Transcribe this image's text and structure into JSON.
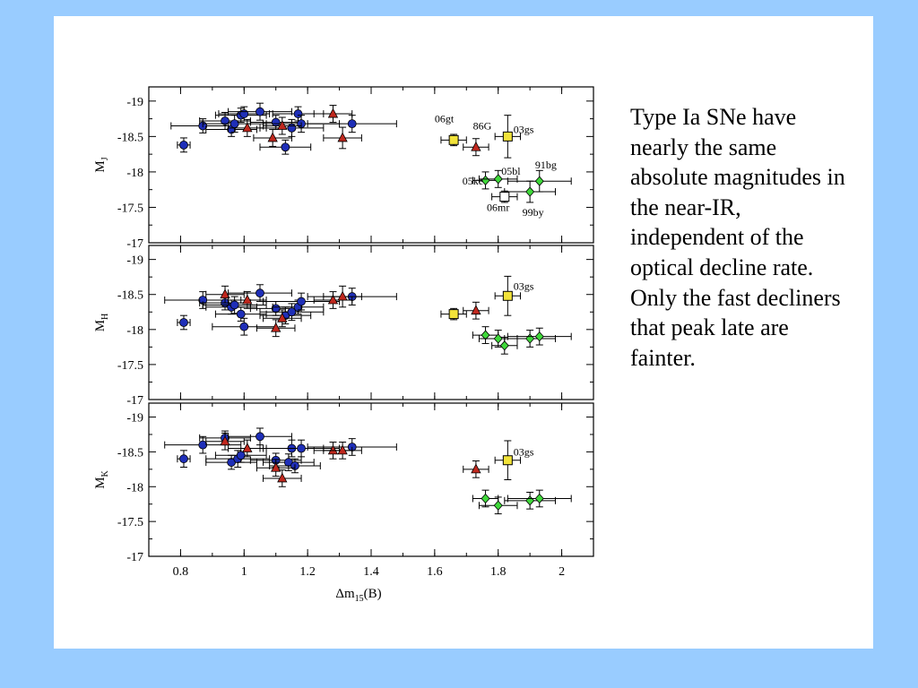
{
  "caption": "Type Ia SNe have nearly the same absolute magnitudes in the near-IR, independent of the optical decline rate. Only the fast decliners that peak late are fainter.",
  "chart_data": {
    "type": "scatter",
    "xlabel": "Δm15(B)",
    "xlim": [
      0.7,
      2.1
    ],
    "xticks": [
      "0.8",
      "1",
      "1.2",
      "1.4",
      "1.6",
      "1.8",
      "2"
    ],
    "ylim": [
      -17,
      -19.2
    ],
    "yticks": [
      "-19",
      "-18.5",
      "-18",
      "-17.5",
      "-17"
    ],
    "colors": {
      "blue": "#1f2fb8",
      "red": "#c0281e",
      "yellow": "#f2e33a",
      "green": "#3fd83a"
    },
    "panels": [
      {
        "ylabel": "MJ",
        "points": [
          {
            "x": 0.81,
            "y": -18.38,
            "xe": 0.02,
            "ye": 0.1,
            "m": "circle",
            "c": "blue"
          },
          {
            "x": 0.87,
            "y": -18.65,
            "xe": 0.1,
            "ye": 0.1,
            "m": "circle",
            "c": "blue"
          },
          {
            "x": 0.94,
            "y": -18.72,
            "xe": 0.08,
            "ye": 0.12,
            "m": "circle",
            "c": "blue"
          },
          {
            "x": 0.96,
            "y": -18.6,
            "xe": 0.08,
            "ye": 0.1,
            "m": "circle",
            "c": "blue"
          },
          {
            "x": 0.97,
            "y": -18.68,
            "xe": 0.1,
            "ye": 0.12,
            "m": "circle",
            "c": "blue"
          },
          {
            "x": 0.99,
            "y": -18.8,
            "xe": 0.08,
            "ye": 0.1,
            "m": "circle",
            "c": "blue"
          },
          {
            "x": 1.0,
            "y": -18.82,
            "xe": 0.08,
            "ye": 0.1,
            "m": "circle",
            "c": "blue"
          },
          {
            "x": 1.05,
            "y": -18.85,
            "xe": 0.1,
            "ye": 0.12,
            "m": "circle",
            "c": "blue"
          },
          {
            "x": 1.1,
            "y": -18.7,
            "xe": 0.08,
            "ye": 0.1,
            "m": "circle",
            "c": "blue"
          },
          {
            "x": 1.13,
            "y": -18.35,
            "xe": 0.08,
            "ye": 0.1,
            "m": "circle",
            "c": "blue"
          },
          {
            "x": 1.15,
            "y": -18.62,
            "xe": 0.1,
            "ye": 0.12,
            "m": "circle",
            "c": "blue"
          },
          {
            "x": 1.17,
            "y": -18.82,
            "xe": 0.08,
            "ye": 0.1,
            "m": "circle",
            "c": "blue"
          },
          {
            "x": 1.18,
            "y": -18.68,
            "xe": 0.12,
            "ye": 0.12,
            "m": "circle",
            "c": "blue"
          },
          {
            "x": 1.34,
            "y": -18.68,
            "xe": 0.14,
            "ye": 0.12,
            "m": "circle",
            "c": "blue"
          },
          {
            "x": 1.01,
            "y": -18.62,
            "xe": 0.06,
            "ye": 0.12,
            "m": "tri",
            "c": "red"
          },
          {
            "x": 1.09,
            "y": -18.48,
            "xe": 0.06,
            "ye": 0.12,
            "m": "tri",
            "c": "red"
          },
          {
            "x": 1.12,
            "y": -18.65,
            "xe": 0.06,
            "ye": 0.12,
            "m": "tri",
            "c": "red"
          },
          {
            "x": 1.28,
            "y": -18.82,
            "xe": 0.06,
            "ye": 0.12,
            "m": "tri",
            "c": "red"
          },
          {
            "x": 1.31,
            "y": -18.48,
            "xe": 0.06,
            "ye": 0.15,
            "m": "tri",
            "c": "red"
          },
          {
            "x": 1.73,
            "y": -18.35,
            "xe": 0.04,
            "ye": 0.12,
            "m": "tri",
            "c": "red"
          },
          {
            "x": 1.66,
            "y": -18.45,
            "xe": 0.04,
            "ye": 0.08,
            "m": "square",
            "c": "yellow"
          },
          {
            "x": 1.83,
            "y": -18.5,
            "xe": 0.04,
            "ye": 0.3,
            "m": "square",
            "c": "yellow"
          },
          {
            "x": 1.76,
            "y": -17.88,
            "xe": 0.04,
            "ye": 0.12,
            "m": "diamond",
            "c": "green"
          },
          {
            "x": 1.8,
            "y": -17.9,
            "xe": 0.06,
            "ye": 0.12,
            "m": "diamond",
            "c": "green"
          },
          {
            "x": 1.9,
            "y": -17.72,
            "xe": 0.08,
            "ye": 0.15,
            "m": "diamond",
            "c": "green"
          },
          {
            "x": 1.93,
            "y": -17.87,
            "xe": 0.1,
            "ye": 0.15,
            "m": "diamond",
            "c": "green"
          },
          {
            "x": 1.82,
            "y": -17.65,
            "xe": 0.04,
            "ye": 0.08,
            "m": "square",
            "c": "white"
          }
        ],
        "labels": [
          {
            "text": "06gt",
            "x": 1.63,
            "y": -18.7
          },
          {
            "text": "86G",
            "x": 1.75,
            "y": -18.6
          },
          {
            "text": "03gs",
            "x": 1.88,
            "y": -18.55
          },
          {
            "text": "05bl",
            "x": 1.84,
            "y": -17.96
          },
          {
            "text": "91bg",
            "x": 1.95,
            "y": -18.05
          },
          {
            "text": "05ke",
            "x": 1.72,
            "y": -17.82
          },
          {
            "text": "06mr",
            "x": 1.8,
            "y": -17.45
          },
          {
            "text": "99by",
            "x": 1.91,
            "y": -17.38
          }
        ]
      },
      {
        "ylabel": "MH",
        "points": [
          {
            "x": 0.81,
            "y": -18.1,
            "xe": 0.02,
            "ye": 0.1,
            "m": "circle",
            "c": "blue"
          },
          {
            "x": 0.87,
            "y": -18.42,
            "xe": 0.12,
            "ye": 0.12,
            "m": "circle",
            "c": "blue"
          },
          {
            "x": 0.94,
            "y": -18.38,
            "xe": 0.08,
            "ye": 0.1,
            "m": "circle",
            "c": "blue"
          },
          {
            "x": 0.96,
            "y": -18.32,
            "xe": 0.08,
            "ye": 0.1,
            "m": "circle",
            "c": "blue"
          },
          {
            "x": 0.97,
            "y": -18.35,
            "xe": 0.1,
            "ye": 0.12,
            "m": "circle",
            "c": "blue"
          },
          {
            "x": 0.99,
            "y": -18.22,
            "xe": 0.08,
            "ye": 0.1,
            "m": "circle",
            "c": "blue"
          },
          {
            "x": 1.0,
            "y": -18.04,
            "xe": 0.1,
            "ye": 0.12,
            "m": "circle",
            "c": "blue"
          },
          {
            "x": 1.05,
            "y": -18.52,
            "xe": 0.1,
            "ye": 0.12,
            "m": "circle",
            "c": "blue"
          },
          {
            "x": 1.1,
            "y": -18.3,
            "xe": 0.08,
            "ye": 0.1,
            "m": "circle",
            "c": "blue"
          },
          {
            "x": 1.13,
            "y": -18.2,
            "xe": 0.08,
            "ye": 0.12,
            "m": "circle",
            "c": "blue"
          },
          {
            "x": 1.15,
            "y": -18.25,
            "xe": 0.1,
            "ye": 0.12,
            "m": "circle",
            "c": "blue"
          },
          {
            "x": 1.17,
            "y": -18.32,
            "xe": 0.08,
            "ye": 0.1,
            "m": "circle",
            "c": "blue"
          },
          {
            "x": 1.18,
            "y": -18.4,
            "xe": 0.12,
            "ye": 0.12,
            "m": "circle",
            "c": "blue"
          },
          {
            "x": 1.34,
            "y": -18.47,
            "xe": 0.14,
            "ye": 0.12,
            "m": "circle",
            "c": "blue"
          },
          {
            "x": 0.94,
            "y": -18.5,
            "xe": 0.06,
            "ye": 0.12,
            "m": "tri",
            "c": "red"
          },
          {
            "x": 1.01,
            "y": -18.42,
            "xe": 0.06,
            "ye": 0.12,
            "m": "tri",
            "c": "red"
          },
          {
            "x": 1.1,
            "y": -18.02,
            "xe": 0.06,
            "ye": 0.12,
            "m": "tri",
            "c": "red"
          },
          {
            "x": 1.12,
            "y": -18.16,
            "xe": 0.06,
            "ye": 0.12,
            "m": "tri",
            "c": "red"
          },
          {
            "x": 1.28,
            "y": -18.42,
            "xe": 0.06,
            "ye": 0.12,
            "m": "tri",
            "c": "red"
          },
          {
            "x": 1.31,
            "y": -18.47,
            "xe": 0.06,
            "ye": 0.15,
            "m": "tri",
            "c": "red"
          },
          {
            "x": 1.73,
            "y": -18.27,
            "xe": 0.04,
            "ye": 0.12,
            "m": "tri",
            "c": "red"
          },
          {
            "x": 1.66,
            "y": -18.22,
            "xe": 0.04,
            "ye": 0.08,
            "m": "square",
            "c": "yellow"
          },
          {
            "x": 1.83,
            "y": -18.48,
            "xe": 0.04,
            "ye": 0.28,
            "m": "square",
            "c": "yellow"
          },
          {
            "x": 1.76,
            "y": -17.92,
            "xe": 0.04,
            "ye": 0.12,
            "m": "diamond",
            "c": "green"
          },
          {
            "x": 1.8,
            "y": -17.87,
            "xe": 0.06,
            "ye": 0.12,
            "m": "diamond",
            "c": "green"
          },
          {
            "x": 1.82,
            "y": -17.77,
            "xe": 0.04,
            "ye": 0.12,
            "m": "diamond",
            "c": "green"
          },
          {
            "x": 1.9,
            "y": -17.87,
            "xe": 0.08,
            "ye": 0.12,
            "m": "diamond",
            "c": "green"
          },
          {
            "x": 1.93,
            "y": -17.9,
            "xe": 0.1,
            "ye": 0.12,
            "m": "diamond",
            "c": "green"
          }
        ],
        "labels": [
          {
            "text": "03gs",
            "x": 1.88,
            "y": -18.57
          }
        ]
      },
      {
        "ylabel": "MK",
        "points": [
          {
            "x": 0.81,
            "y": -18.4,
            "xe": 0.02,
            "ye": 0.12,
            "m": "circle",
            "c": "blue"
          },
          {
            "x": 0.87,
            "y": -18.6,
            "xe": 0.12,
            "ye": 0.12,
            "m": "circle",
            "c": "blue"
          },
          {
            "x": 0.94,
            "y": -18.7,
            "xe": 0.08,
            "ye": 0.1,
            "m": "circle",
            "c": "blue"
          },
          {
            "x": 0.96,
            "y": -18.35,
            "xe": 0.08,
            "ye": 0.1,
            "m": "circle",
            "c": "blue"
          },
          {
            "x": 0.98,
            "y": -18.4,
            "xe": 0.1,
            "ye": 0.12,
            "m": "circle",
            "c": "blue"
          },
          {
            "x": 0.99,
            "y": -18.45,
            "xe": 0.08,
            "ye": 0.1,
            "m": "circle",
            "c": "blue"
          },
          {
            "x": 1.05,
            "y": -18.72,
            "xe": 0.1,
            "ye": 0.12,
            "m": "circle",
            "c": "blue"
          },
          {
            "x": 1.1,
            "y": -18.38,
            "xe": 0.08,
            "ye": 0.1,
            "m": "circle",
            "c": "blue"
          },
          {
            "x": 1.14,
            "y": -18.35,
            "xe": 0.08,
            "ye": 0.12,
            "m": "circle",
            "c": "blue"
          },
          {
            "x": 1.15,
            "y": -18.55,
            "xe": 0.1,
            "ye": 0.12,
            "m": "circle",
            "c": "blue"
          },
          {
            "x": 1.16,
            "y": -18.3,
            "xe": 0.08,
            "ye": 0.1,
            "m": "circle",
            "c": "blue"
          },
          {
            "x": 1.18,
            "y": -18.55,
            "xe": 0.12,
            "ye": 0.12,
            "m": "circle",
            "c": "blue"
          },
          {
            "x": 1.34,
            "y": -18.57,
            "xe": 0.14,
            "ye": 0.12,
            "m": "circle",
            "c": "blue"
          },
          {
            "x": 0.94,
            "y": -18.65,
            "xe": 0.06,
            "ye": 0.12,
            "m": "tri",
            "c": "red"
          },
          {
            "x": 1.01,
            "y": -18.55,
            "xe": 0.06,
            "ye": 0.12,
            "m": "tri",
            "c": "red"
          },
          {
            "x": 1.1,
            "y": -18.27,
            "xe": 0.06,
            "ye": 0.12,
            "m": "tri",
            "c": "red"
          },
          {
            "x": 1.12,
            "y": -18.12,
            "xe": 0.06,
            "ye": 0.12,
            "m": "tri",
            "c": "red"
          },
          {
            "x": 1.28,
            "y": -18.52,
            "xe": 0.06,
            "ye": 0.12,
            "m": "tri",
            "c": "red"
          },
          {
            "x": 1.31,
            "y": -18.52,
            "xe": 0.06,
            "ye": 0.12,
            "m": "tri",
            "c": "red"
          },
          {
            "x": 1.73,
            "y": -18.25,
            "xe": 0.04,
            "ye": 0.12,
            "m": "tri",
            "c": "red"
          },
          {
            "x": 1.83,
            "y": -18.38,
            "xe": 0.04,
            "ye": 0.28,
            "m": "square",
            "c": "yellow"
          },
          {
            "x": 1.76,
            "y": -17.83,
            "xe": 0.04,
            "ye": 0.12,
            "m": "diamond",
            "c": "green"
          },
          {
            "x": 1.8,
            "y": -17.73,
            "xe": 0.06,
            "ye": 0.12,
            "m": "diamond",
            "c": "green"
          },
          {
            "x": 1.9,
            "y": -17.8,
            "xe": 0.08,
            "ye": 0.12,
            "m": "diamond",
            "c": "green"
          },
          {
            "x": 1.93,
            "y": -17.83,
            "xe": 0.1,
            "ye": 0.12,
            "m": "diamond",
            "c": "green"
          }
        ],
        "labels": [
          {
            "text": "03gs",
            "x": 1.88,
            "y": -18.45
          }
        ]
      }
    ]
  }
}
